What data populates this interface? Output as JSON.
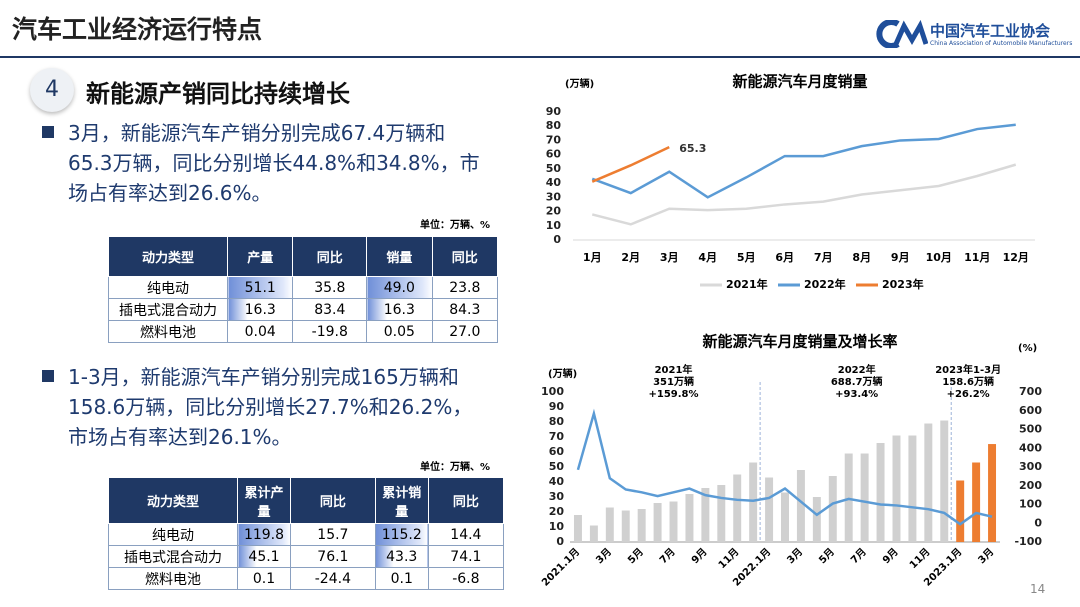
{
  "header": {
    "title": "汽车工业经济运行特点",
    "logo_cn": "中国汽车工业协会",
    "logo_en": "China Association of Automobile Manufacturers"
  },
  "section": {
    "number": "4",
    "title": "新能源产销同比持续增长"
  },
  "bullets": [
    "3月，新能源汽车产销分别完成67.4万辆和65.3万辆，同比分别增长44.8%和34.8%，市场占有率达到26.6%。",
    "1-3月，新能源汽车产销分别完成165万辆和158.6万辆，同比分别增长27.7%和26.2%，市场占有率达到26.1%。"
  ],
  "tables": [
    {
      "unit": "单位：万辆、%",
      "header": [
        "动力类型",
        "产量",
        "同比",
        "销量",
        "同比"
      ],
      "rows": [
        [
          "纯电动",
          "51.1",
          "35.8",
          "49.0",
          "23.8"
        ],
        [
          "插电式混合动力",
          "16.3",
          "83.4",
          "16.3",
          "84.3"
        ],
        [
          "燃料电池",
          "0.04",
          "-19.8",
          "0.05",
          "27.0"
        ]
      ]
    },
    {
      "unit": "单位：万辆、%",
      "header": [
        "动力类型",
        "累计产量",
        "同比",
        "累计销量",
        "同比"
      ],
      "rows": [
        [
          "纯电动",
          "119.8",
          "15.7",
          "115.2",
          "14.4"
        ],
        [
          "插电式混合动力",
          "45.1",
          "76.1",
          "43.3",
          "74.1"
        ],
        [
          "燃料电池",
          "0.1",
          "-24.4",
          "0.1",
          "-6.8"
        ]
      ]
    }
  ],
  "page_number": "14",
  "chart_data": [
    {
      "type": "line",
      "title": "新能源汽车月度销量",
      "y_label": "(万辆)",
      "categories": [
        "1月",
        "2月",
        "3月",
        "4月",
        "5月",
        "6月",
        "7月",
        "8月",
        "9月",
        "10月",
        "11月",
        "12月"
      ],
      "ylim": [
        0,
        90
      ],
      "yticks": [
        0,
        10,
        20,
        30,
        40,
        50,
        60,
        70,
        80,
        90
      ],
      "legend": "bottom",
      "series": [
        {
          "name": "2021年",
          "color": "#d9d9d9",
          "values": [
            18,
            11,
            22,
            21,
            22,
            25,
            27,
            32,
            35,
            38,
            45,
            53
          ]
        },
        {
          "name": "2022年",
          "color": "#5b9bd5",
          "values": [
            43,
            33,
            48,
            30,
            44,
            59,
            59,
            66,
            70,
            71,
            78,
            81
          ]
        },
        {
          "name": "2023年",
          "color": "#ed7d31",
          "values": [
            41,
            52.5,
            65.3,
            null,
            null,
            null,
            null,
            null,
            null,
            null,
            null,
            null
          ]
        }
      ]
    },
    {
      "type": "combo",
      "title": "新能源汽车月度销量及增长率",
      "y_label": "(万辆)",
      "y2_label": "(%)",
      "categories": [
        "2021.1月",
        null,
        "3月",
        null,
        "5月",
        null,
        "7月",
        null,
        "9月",
        null,
        "11月",
        null,
        "2022.1月",
        null,
        "3月",
        null,
        "5月",
        null,
        "7月",
        null,
        "9月",
        null,
        "11月",
        null,
        "2023.1月",
        null,
        "3月"
      ],
      "ylim": [
        0,
        100
      ],
      "yticks": [
        0,
        10,
        20,
        30,
        40,
        50,
        60,
        70,
        80,
        90,
        100
      ],
      "y2lim": [
        -100,
        700
      ],
      "y2ticks": [
        -100,
        0,
        100,
        200,
        300,
        400,
        500,
        600,
        700
      ],
      "annotations": [
        [
          "2021年",
          "351万辆",
          "+159.8%"
        ],
        [
          "2022年",
          "688.7万辆",
          "+93.4%"
        ],
        [
          "2023年1-3月",
          "158.6万辆",
          "+26.2%"
        ]
      ],
      "series": [
        {
          "type": "bar",
          "colors": [
            "#d0d0d0",
            "#d0d0d0",
            "#d0d0d0",
            "#d0d0d0",
            "#d0d0d0",
            "#d0d0d0",
            "#d0d0d0",
            "#d0d0d0",
            "#d0d0d0",
            "#d0d0d0",
            "#d0d0d0",
            "#d0d0d0",
            "#d0d0d0",
            "#d0d0d0",
            "#d0d0d0",
            "#d0d0d0",
            "#d0d0d0",
            "#d0d0d0",
            "#d0d0d0",
            "#d0d0d0",
            "#d0d0d0",
            "#d0d0d0",
            "#d0d0d0",
            "#d0d0d0",
            "#ed7d31",
            "#ed7d31",
            "#ed7d31"
          ],
          "values": [
            18,
            11,
            23,
            21,
            22,
            26,
            27,
            32,
            36,
            38,
            45,
            53,
            43,
            33,
            48,
            30,
            44,
            59,
            59,
            66,
            71,
            71,
            79,
            81,
            41,
            53,
            65.3
          ]
        },
        {
          "type": "line",
          "axis": "y2",
          "color": "#5b9bd5",
          "values": [
            285,
            585,
            240,
            180,
            165,
            145,
            165,
            185,
            150,
            135,
            125,
            120,
            135,
            185,
            115,
            45,
            105,
            130,
            115,
            100,
            95,
            85,
            75,
            55,
            -5,
            55,
            35
          ]
        }
      ]
    }
  ]
}
